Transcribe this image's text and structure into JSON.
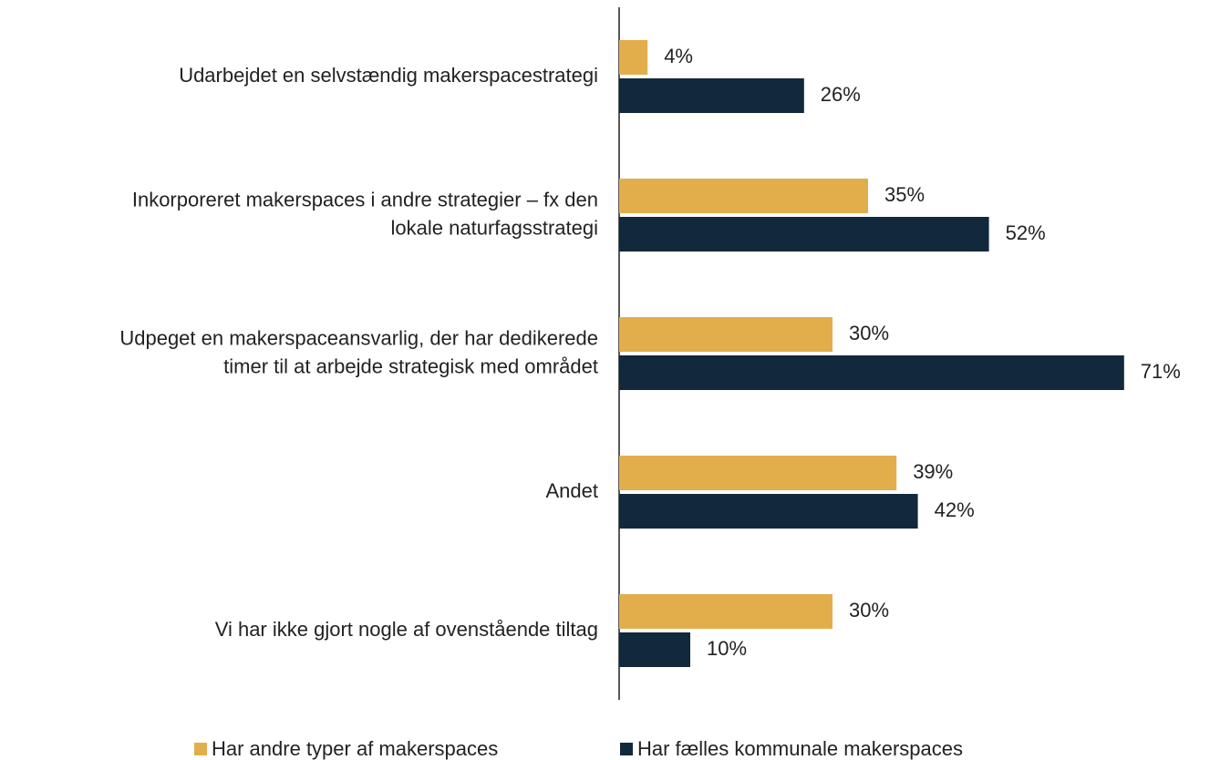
{
  "chart_data": {
    "type": "bar",
    "orientation": "horizontal",
    "categories": [
      [
        "Udarbejdet  en selvstændig makerspacestrategi"
      ],
      [
        "Inkorporeret makerspaces i andre strategier – fx den",
        "lokale naturfagsstrategi"
      ],
      [
        "Udpeget en makerspaceansvarlig, der har dedikerede",
        "timer til at arbejde strategisk med området"
      ],
      [
        "Andet"
      ],
      [
        "Vi har ikke gjort nogle af ovenstående tiltag"
      ]
    ],
    "series": [
      {
        "name": "Har andre typer af makerspaces",
        "color": "#e2ae4b",
        "values": [
          4,
          35,
          30,
          39,
          30
        ],
        "value_labels": [
          "4%",
          "35%",
          "30%",
          "39%",
          "30%"
        ]
      },
      {
        "name": "Har fælles kommunale makerspaces",
        "color": "#12283d",
        "values": [
          26,
          52,
          71,
          42,
          10
        ],
        "value_labels": [
          "26%",
          "52%",
          "71%",
          "42%",
          "10%"
        ]
      }
    ],
    "xlim": [
      0,
      75
    ],
    "legend": "bottom"
  }
}
